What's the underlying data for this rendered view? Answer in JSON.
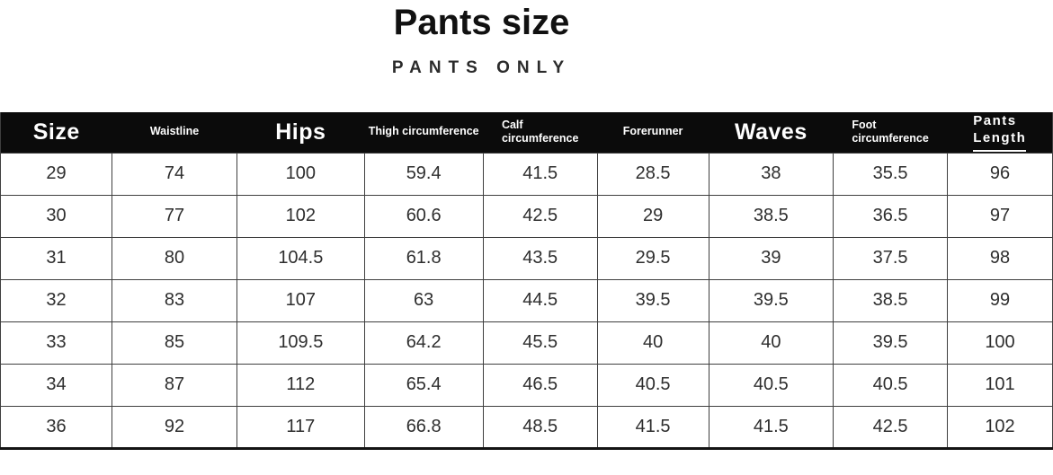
{
  "page": {
    "title": "Pants size",
    "subtitle": "PANTS ONLY"
  },
  "colors": {
    "header_bg": "#0b0b0b",
    "header_text": "#ffffff",
    "cell_text": "#2e2e2e",
    "grid": "#3f3f3f",
    "background": "#ffffff"
  },
  "chart_data": {
    "type": "table",
    "title": "Pants size",
    "subtitle": "PANTS ONLY",
    "columns": [
      "Size",
      "Waistline",
      "Hips",
      "Thigh circumference",
      "Calf\ncircumference",
      "Forerunner",
      "Waves",
      "Foot\ncircumference",
      "Pants\nLength"
    ],
    "rows": [
      [
        "29",
        "74",
        "100",
        "59.4",
        "41.5",
        "28.5",
        "38",
        "35.5",
        "96"
      ],
      [
        "30",
        "77",
        "102",
        "60.6",
        "42.5",
        "29",
        "38.5",
        "36.5",
        "97"
      ],
      [
        "31",
        "80",
        "104.5",
        "61.8",
        "43.5",
        "29.5",
        "39",
        "37.5",
        "98"
      ],
      [
        "32",
        "83",
        "107",
        "63",
        "44.5",
        "39.5",
        "39.5",
        "38.5",
        "99"
      ],
      [
        "33",
        "85",
        "109.5",
        "64.2",
        "45.5",
        "40",
        "40",
        "39.5",
        "100"
      ],
      [
        "34",
        "87",
        "112",
        "65.4",
        "46.5",
        "40.5",
        "40.5",
        "40.5",
        "101"
      ],
      [
        "36",
        "92",
        "117",
        "66.8",
        "48.5",
        "41.5",
        "41.5",
        "42.5",
        "102"
      ]
    ]
  }
}
